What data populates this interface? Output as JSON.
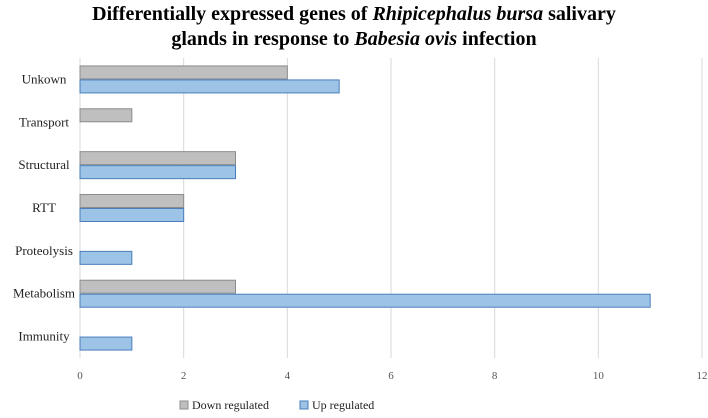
{
  "chart_data": {
    "type": "bar",
    "orientation": "horizontal",
    "title": {
      "parts": [
        {
          "text": "Differentially expressed genes of ",
          "italic": false
        },
        {
          "text": "Rhipicephalus bursa",
          "italic": true
        },
        {
          "text": " salivary",
          "italic": false
        },
        {
          "text": "\n",
          "italic": false
        },
        {
          "text": "glands in response to ",
          "italic": false
        },
        {
          "text": "Babesia ovis",
          "italic": true
        },
        {
          "text": " infection",
          "italic": false
        }
      ]
    },
    "categories": [
      "Unkown",
      "Transport",
      "Structural",
      "RTT",
      "Proteolysis",
      "Metabolism",
      "Immunity"
    ],
    "series": [
      {
        "name": "Down regulated",
        "color": "#bfbfbf",
        "stroke": "#8c8c8c",
        "values": [
          4,
          1,
          3,
          2,
          0,
          3,
          0
        ]
      },
      {
        "name": "Up regulated",
        "color": "#9dc3e6",
        "stroke": "#4a7ebb",
        "values": [
          5,
          0,
          3,
          2,
          1,
          11,
          1
        ]
      }
    ],
    "xlim": [
      0,
      12
    ],
    "xticks": [
      0,
      2,
      4,
      6,
      8,
      10,
      12
    ],
    "grid": true,
    "legend_position": "bottom"
  }
}
